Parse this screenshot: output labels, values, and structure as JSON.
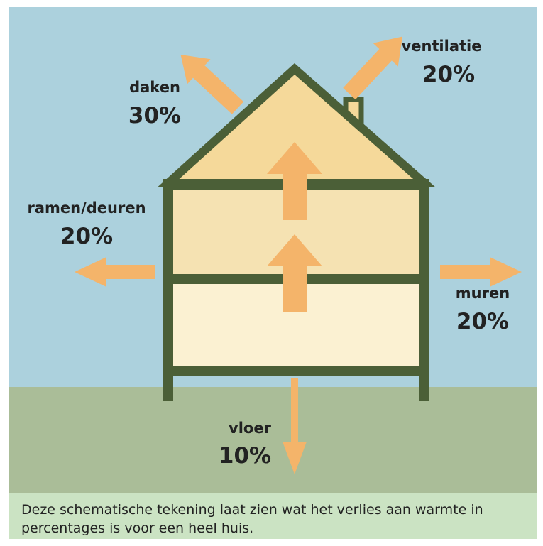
{
  "labels": [
    {
      "name": "daken",
      "percent": "30%"
    },
    {
      "name": "ventilatie",
      "percent": "20%"
    },
    {
      "name": "ramen/deuren",
      "percent": "20%"
    },
    {
      "name": "muren",
      "percent": "20%"
    },
    {
      "name": "vloer",
      "percent": "10%"
    }
  ],
  "caption": "Deze schematische tekening laat zien wat het verlies aan warmte in percentages is voor een heel huis."
}
